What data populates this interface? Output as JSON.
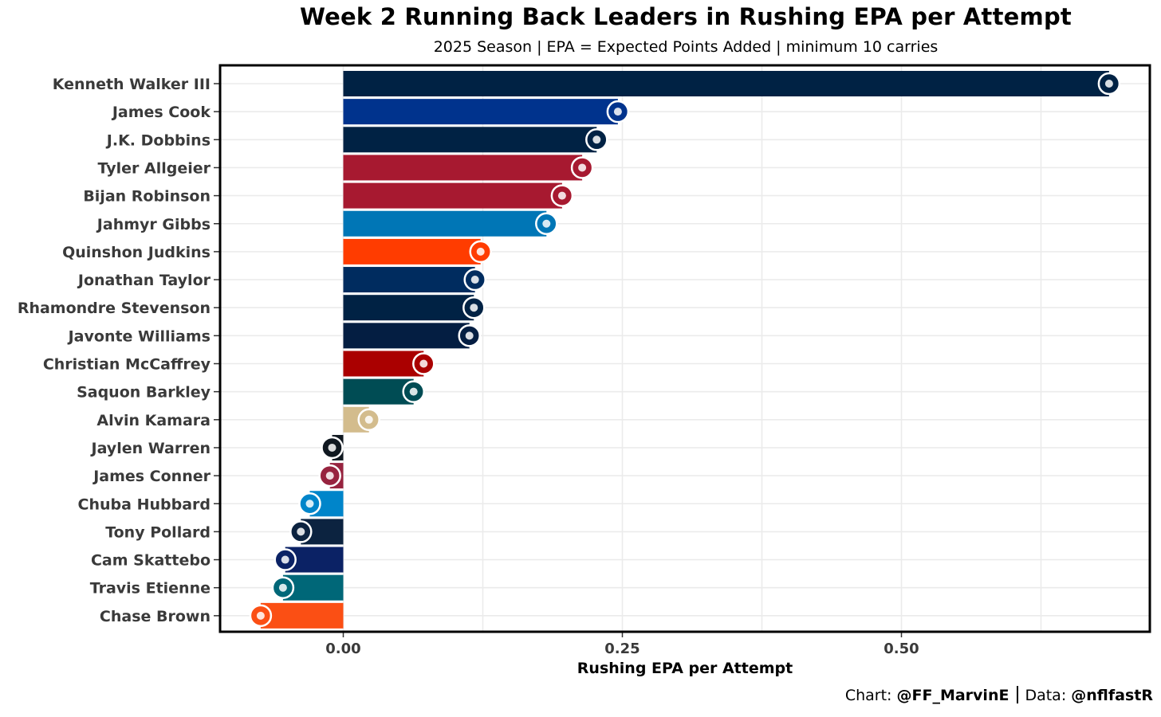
{
  "chart_data": {
    "type": "bar",
    "orientation": "horizontal",
    "title": "Week 2 Running Back Leaders in Rushing EPA per Attempt",
    "subtitle": "2025 Season | EPA = Expected Points Added | minimum 10 carries",
    "xlabel": "Rushing EPA per Attempt",
    "xlim": [
      -0.11,
      0.72
    ],
    "xticks": [
      0.0,
      0.25,
      0.5
    ],
    "xtick_labels": [
      "0.00",
      "0.25",
      "0.50"
    ],
    "grid": true,
    "categories": [
      "Kenneth Walker III",
      "James Cook",
      "J.K. Dobbins",
      "Tyler Allgeier",
      "Bijan Robinson",
      "Jahmyr Gibbs",
      "Quinshon Judkins",
      "Jonathan Taylor",
      "Rhamondre Stevenson",
      "Javonte Williams",
      "Christian McCaffrey",
      "Saquon Barkley",
      "Alvin Kamara",
      "Jaylen Warren",
      "James Conner",
      "Chuba Hubbard",
      "Tony Pollard",
      "Cam Skattebo",
      "Travis Etienne",
      "Chase Brown"
    ],
    "values": [
      0.686,
      0.246,
      0.227,
      0.214,
      0.196,
      0.182,
      0.123,
      0.118,
      0.117,
      0.113,
      0.072,
      0.063,
      0.023,
      -0.01,
      -0.012,
      -0.03,
      -0.038,
      -0.052,
      -0.054,
      -0.074
    ],
    "bar_colors": [
      "#002244",
      "#00338D",
      "#002244",
      "#A71930",
      "#A71930",
      "#0076B6",
      "#FF3C00",
      "#002C5F",
      "#002244",
      "#041E42",
      "#AA0000",
      "#004C54",
      "#D3BC8D",
      "#101820",
      "#97233F",
      "#0085CA",
      "#0C2340",
      "#0B2265",
      "#006778",
      "#FB4F14"
    ],
    "team_logos": [
      "seahawks-logo",
      "bills-logo",
      "broncos-logo",
      "falcons-logo",
      "falcons-logo",
      "lions-logo",
      "browns-logo",
      "colts-logo",
      "patriots-logo",
      "cowboys-logo",
      "49ers-logo",
      "eagles-logo",
      "saints-logo",
      "steelers-logo",
      "cardinals-logo",
      "panthers-logo",
      "titans-logo",
      "giants-logo",
      "jaguars-logo",
      "bengals-logo"
    ]
  },
  "caption": {
    "chart_prefix": "Chart:",
    "chart_handle": "@FF_MarvinE",
    "data_prefix": "Data:",
    "data_handle": "@nflfastR"
  }
}
